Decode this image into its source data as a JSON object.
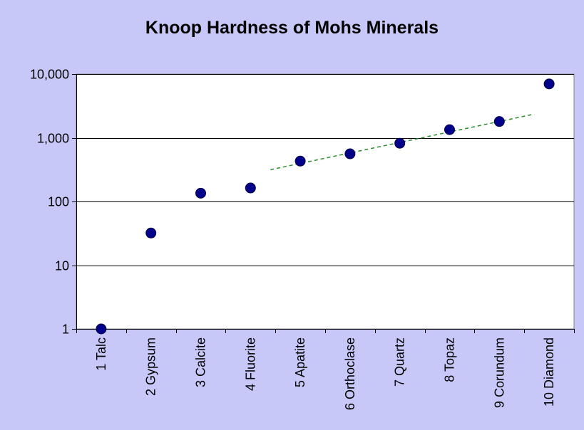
{
  "chart_data": {
    "type": "scatter",
    "title": "Knoop Hardness of Mohs Minerals",
    "xlabel": "",
    "ylabel": "",
    "categories": [
      "1 Talc",
      "2 Gypsum",
      "3 Calcite",
      "4 Fluorite",
      "5 Apatite",
      "6 Orthoclase",
      "7 Quartz",
      "8 Topaz",
      "9 Corundum",
      "10 Diamond"
    ],
    "series": [
      {
        "values": [
          1,
          32,
          135,
          163,
          430,
          560,
          820,
          1340,
          1800,
          7000
        ],
        "color": "#00008b"
      }
    ],
    "trendline": {
      "style": "dashed",
      "color": "#2e8b2e",
      "x_start": 4.4,
      "x_end": 9.7,
      "y_start": 315,
      "y_end": 2350
    },
    "yscale": "log",
    "ylim": [
      1,
      10000
    ],
    "yticks": [
      1,
      10,
      100,
      1000,
      10000
    ],
    "ytick_labels": [
      "1",
      "10",
      "100",
      "1,000",
      "10,000"
    ],
    "grid": true,
    "legend": "none",
    "background": "#c8c8f8",
    "plot_background": "#ffffff"
  }
}
